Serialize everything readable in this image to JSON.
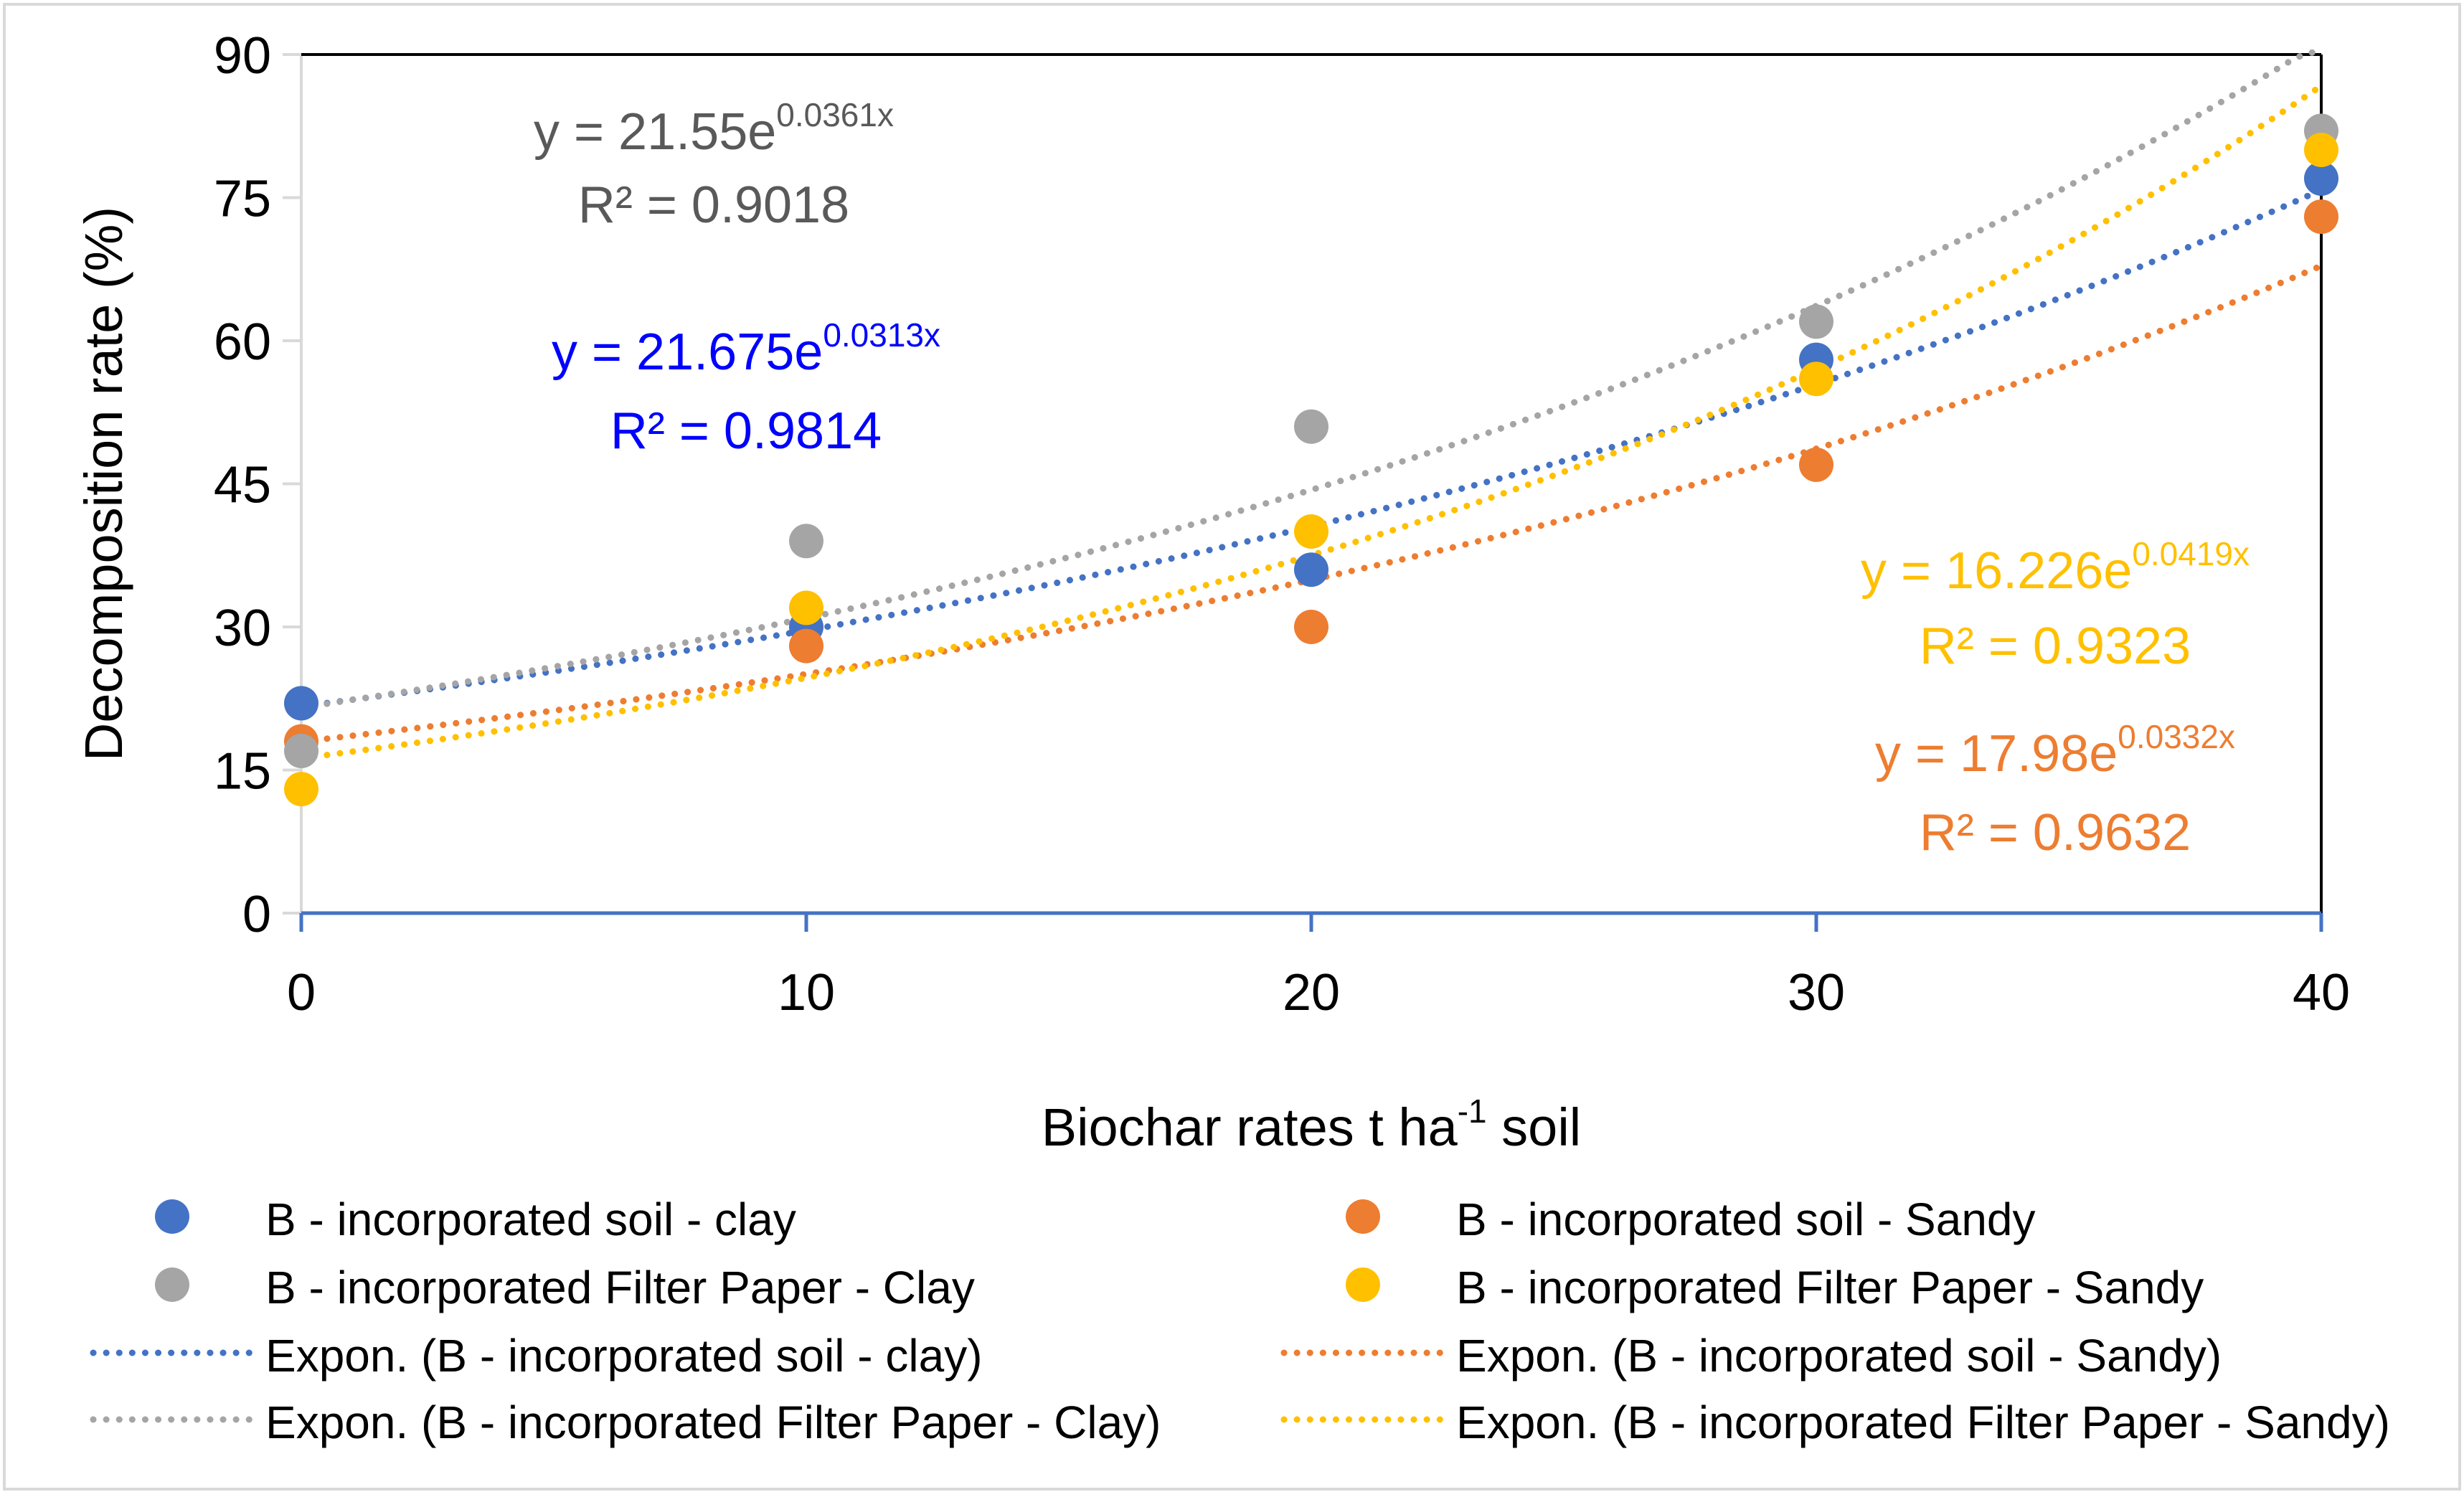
{
  "chart_data": {
    "type": "scatter",
    "xlabel": "Biochar rates t ha",
    "xlabel_superscript": "-1",
    "xlabel_suffix": " soil",
    "ylabel": "Decomposition rate (%)",
    "xlim": [
      0,
      40
    ],
    "ylim": [
      0,
      90
    ],
    "x_ticks": [
      0,
      10,
      20,
      30,
      40
    ],
    "y_ticks": [
      0,
      15,
      30,
      45,
      60,
      75,
      90
    ],
    "grid": false,
    "legend_position": "bottom",
    "x": [
      0,
      10,
      20,
      30,
      40
    ],
    "series": [
      {
        "name": "B - incorporated soil - clay",
        "values": [
          22,
          30,
          36,
          58,
          77
        ],
        "color": "#4472C4"
      },
      {
        "name": "B - incorporated soil - Sandy",
        "values": [
          18,
          28,
          30,
          47,
          73
        ],
        "color": "#ED7D31"
      },
      {
        "name": "B - incorporated Filter Paper - Clay",
        "values": [
          17,
          39,
          51,
          62,
          82
        ],
        "color": "#A5A5A5"
      },
      {
        "name": "B - incorporated Filter Paper - Sandy",
        "values": [
          13,
          32,
          40,
          56,
          80
        ],
        "color": "#FFC000"
      }
    ],
    "trendlines": [
      {
        "name": "Expon. (B - incorporated soil - clay)",
        "a": 21.675,
        "b": 0.0313,
        "color": "#4472C4",
        "equation": "y = 21.675e",
        "exponent": "0.0313x",
        "r2": "R² = 0.9814",
        "label_color": "#0000FF"
      },
      {
        "name": "Expon. (B - incorporated soil - Sandy)",
        "a": 17.98,
        "b": 0.0332,
        "color": "#ED7D31",
        "equation": "y = 17.98e",
        "exponent": "0.0332x",
        "r2": "R² = 0.9632",
        "label_color": "#ED7D31"
      },
      {
        "name": "Expon. (B - incorporated Filter Paper - Clay)",
        "a": 21.55,
        "b": 0.0361,
        "color": "#A5A5A5",
        "equation": "y = 21.55e",
        "exponent": "0.0361x",
        "r2": "R² = 0.9018",
        "label_color": "#595959"
      },
      {
        "name": "Expon. (B - incorporated Filter Paper - Sandy)",
        "a": 16.226,
        "b": 0.0419,
        "color": "#FFC000",
        "equation": "y = 16.226e",
        "exponent": "0.0419x",
        "r2": "R² = 0.9323",
        "label_color": "#FFC000"
      }
    ]
  }
}
